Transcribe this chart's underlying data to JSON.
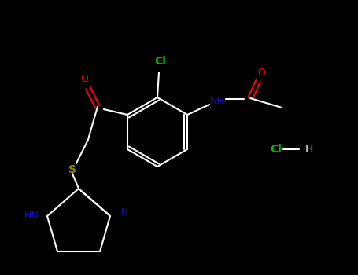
{
  "background": "#000000",
  "bond_color": "#ffffff",
  "cl_color": "#00bb00",
  "o_color": "#ff0000",
  "n_color": "#1111cc",
  "s_color": "#888800",
  "lw": 1.5,
  "figsize": [
    4.55,
    3.5
  ],
  "dpi": 100,
  "xlim": [
    0,
    455
  ],
  "ylim": [
    0,
    350
  ]
}
